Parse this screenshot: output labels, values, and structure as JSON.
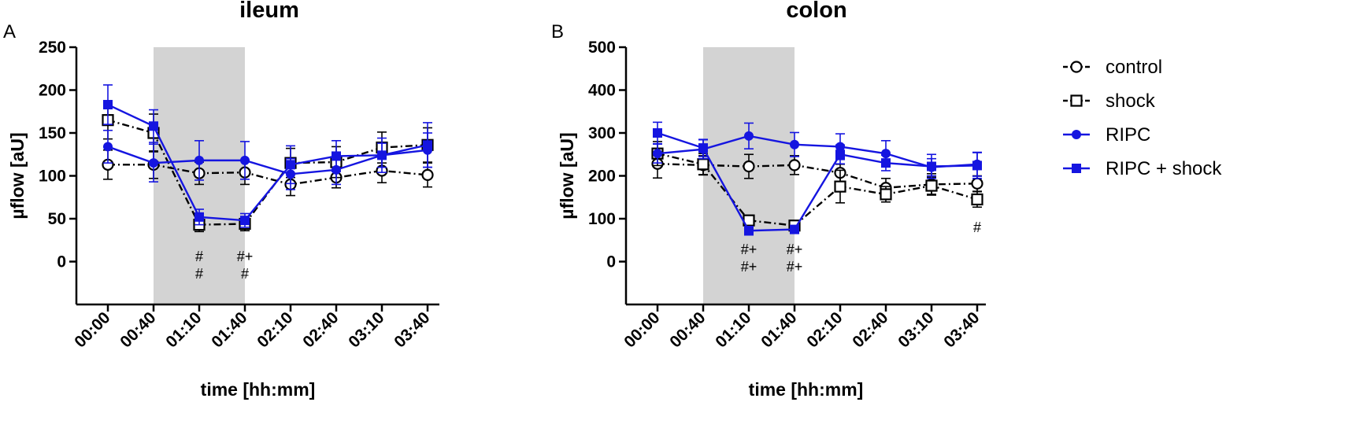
{
  "chart_data": [
    {
      "type": "line",
      "panel_label": "A",
      "title": "ileum",
      "xlabel": "time [hh:mm]",
      "ylabel": "µflow [aU]",
      "categories": [
        "00:00",
        "00:40",
        "01:10",
        "01:40",
        "02:10",
        "02:40",
        "03:10",
        "03:40"
      ],
      "ylim": [
        -50,
        250
      ],
      "yticks": [
        0,
        50,
        100,
        150,
        200,
        250
      ],
      "shaded_region": [
        1,
        3
      ],
      "series": [
        {
          "name": "control",
          "values": [
            113,
            113,
            103,
            104,
            90,
            98,
            106,
            101
          ],
          "errors": [
            17,
            16,
            13,
            14,
            13,
            12,
            14,
            14
          ]
        },
        {
          "name": "shock",
          "values": [
            165,
            150,
            43,
            44,
            115,
            116,
            133,
            136
          ],
          "errors": [
            22,
            22,
            8,
            8,
            17,
            18,
            18,
            20
          ]
        },
        {
          "name": "RIPC",
          "values": [
            134,
            115,
            118,
            118,
            102,
            107,
            124,
            130
          ],
          "errors": [
            19,
            22,
            23,
            22,
            18,
            17,
            20,
            20
          ]
        },
        {
          "name": "RIPC + shock",
          "values": [
            183,
            158,
            52,
            48,
            113,
            123,
            124,
            136
          ],
          "errors": [
            23,
            19,
            9,
            8,
            22,
            18,
            14,
            26
          ]
        }
      ],
      "annotations": [
        {
          "category": "01:10",
          "lines": [
            "#",
            "#"
          ]
        },
        {
          "category": "01:40",
          "lines": [
            "#+",
            "#"
          ]
        }
      ]
    },
    {
      "type": "line",
      "panel_label": "B",
      "title": "colon",
      "xlabel": "time [hh:mm]",
      "ylabel": "µflow [aU]",
      "categories": [
        "00:00",
        "00:40",
        "01:10",
        "01:40",
        "02:10",
        "02:40",
        "03:10",
        "03:40"
      ],
      "ylim": [
        -100,
        500
      ],
      "yticks": [
        0,
        100,
        200,
        300,
        400,
        500
      ],
      "shaded_region": [
        1,
        3
      ],
      "series": [
        {
          "name": "control",
          "values": [
            228,
            225,
            222,
            225,
            207,
            172,
            180,
            182
          ],
          "errors": [
            33,
            22,
            28,
            22,
            20,
            22,
            25,
            18
          ]
        },
        {
          "name": "shock",
          "values": [
            252,
            227,
            96,
            84,
            175,
            157,
            177,
            145
          ],
          "errors": [
            28,
            25,
            12,
            10,
            38,
            18,
            20,
            18
          ]
        },
        {
          "name": "RIPC",
          "values": [
            252,
            262,
            293,
            273,
            268,
            252,
            220,
            227
          ],
          "errors": [
            22,
            22,
            30,
            28,
            30,
            30,
            20,
            28
          ]
        },
        {
          "name": "RIPC + shock",
          "values": [
            300,
            265,
            72,
            75,
            250,
            230,
            222,
            224
          ],
          "errors": [
            25,
            20,
            10,
            8,
            22,
            18,
            28,
            30
          ]
        }
      ],
      "annotations": [
        {
          "category": "01:10",
          "lines": [
            "#+",
            "#+"
          ]
        },
        {
          "category": "01:40",
          "lines": [
            "#+",
            "#+"
          ]
        },
        {
          "category": "03:40",
          "lines": [
            "#"
          ]
        }
      ]
    }
  ],
  "legend": [
    {
      "label": "control",
      "color": "#000000",
      "marker": "circle-open",
      "dash": "dash-dot"
    },
    {
      "label": "shock",
      "color": "#000000",
      "marker": "square-open",
      "dash": "dash-dot"
    },
    {
      "label": "RIPC",
      "color": "#1515e0",
      "marker": "circle-filled",
      "dash": "solid"
    },
    {
      "label": "RIPC + shock",
      "color": "#1515e0",
      "marker": "square-filled",
      "dash": "solid"
    }
  ],
  "colors": {
    "black": "#000000",
    "blue": "#1515e0",
    "shade": "#d3d3d3"
  }
}
